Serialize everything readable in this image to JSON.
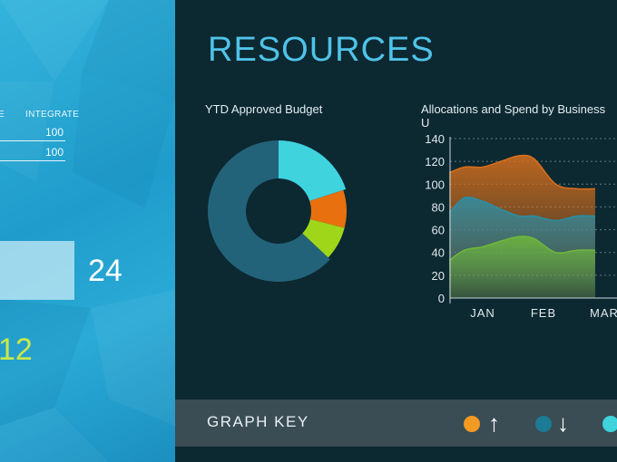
{
  "left_panel": {
    "column_headers": [
      "E",
      "INTEGRATE"
    ],
    "rows": [
      [
        "100"
      ],
      [
        "100"
      ]
    ],
    "bar_value": "24",
    "bottom_value": "12",
    "accent_bottom": "#c9e94a"
  },
  "resources": {
    "title": "RESOURCES",
    "donut_title": "YTD Approved Budget",
    "area_title": "Allocations and Spend by Business U",
    "graph_key_label": "GRAPH KEY",
    "key_items": [
      {
        "color": "#f39a22",
        "icon": "arrow-up-icon",
        "glyph": "↑"
      },
      {
        "color": "#1d7a94",
        "icon": "arrow-down-icon",
        "glyph": "↓"
      },
      {
        "color": "#3fd3de"
      }
    ]
  },
  "chart_data": [
    {
      "type": "pie",
      "title": "YTD Approved Budget",
      "slices": [
        {
          "label": "",
          "value": 20,
          "color": "#3fd3de"
        },
        {
          "label": "",
          "value": 9,
          "color": "#e8700e"
        },
        {
          "label": "",
          "value": 8,
          "color": "#9fd61a"
        },
        {
          "label": "",
          "value": 63,
          "color": "#23637a"
        }
      ]
    },
    {
      "type": "area",
      "title": "Allocations and Spend by Business U",
      "categories": [
        "JAN",
        "FEB",
        "MAR"
      ],
      "y_ticks": [
        0,
        20,
        40,
        60,
        80,
        100,
        120,
        140
      ],
      "ylim": [
        0,
        140
      ],
      "x_start": -0.55,
      "grid": true,
      "series": [
        {
          "color": "#d9701c",
          "x": [
            -0.55,
            -0.3,
            0.0,
            0.3,
            0.6,
            0.85,
            1.2,
            1.55,
            1.85
          ],
          "values": [
            110,
            115,
            115,
            120,
            125,
            122,
            100,
            96,
            96
          ]
        },
        {
          "color": "#2a8ea6",
          "x": [
            -0.55,
            -0.3,
            0.0,
            0.3,
            0.6,
            0.85,
            1.2,
            1.55,
            1.85
          ],
          "values": [
            75,
            88,
            85,
            78,
            72,
            72,
            68,
            72,
            72
          ]
        },
        {
          "color": "#6fb83a",
          "x": [
            -0.55,
            -0.3,
            0.0,
            0.3,
            0.6,
            0.85,
            1.2,
            1.55,
            1.85
          ],
          "values": [
            33,
            42,
            45,
            50,
            54,
            52,
            40,
            42,
            42
          ]
        }
      ]
    }
  ]
}
